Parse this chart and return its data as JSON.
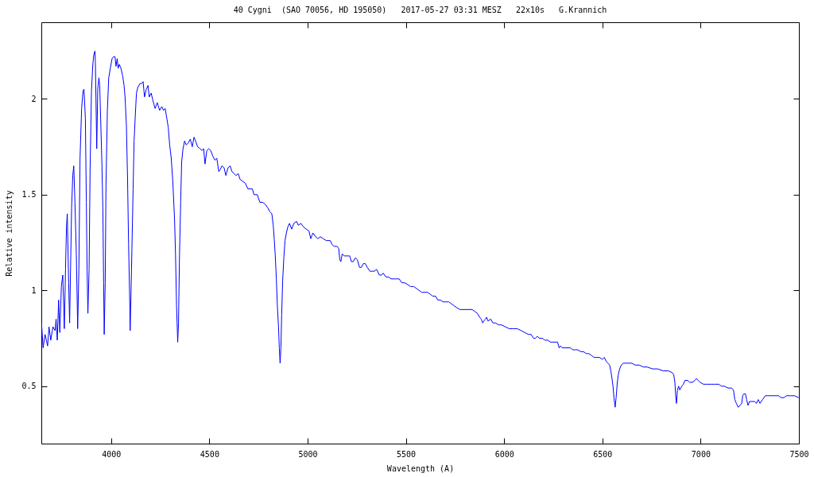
{
  "chart_data": {
    "type": "line",
    "title": "40 Cygni  (SAO 70056, HD 195050)   2017-05-27 03:31 MESZ   22x10s   G.Krannich",
    "xlabel": "Wavelength (A)",
    "ylabel": "Relative intensity",
    "color": "#0000ff",
    "xlim": [
      3645,
      7500
    ],
    "ylim": [
      0.2,
      2.4
    ],
    "xticks": [
      4000,
      4500,
      5000,
      5500,
      6000,
      6500,
      7000,
      7500
    ],
    "yticks": [
      0.5,
      1,
      1.5,
      2
    ],
    "x": [
      3646,
      3654,
      3664,
      3677,
      3684,
      3693,
      3704,
      3715,
      3720,
      3726,
      3733,
      3739,
      3747,
      3754,
      3762,
      3768,
      3773,
      3777,
      3784,
      3789,
      3799,
      3805,
      3810,
      3816,
      3823,
      3830,
      3836,
      3842,
      3850,
      3857,
      3862,
      3869,
      3874,
      3878,
      3882,
      3888,
      3893,
      3900,
      3907,
      3912,
      3918,
      3920,
      3923,
      3927,
      3932,
      3938,
      3942,
      3947,
      3953,
      3958,
      3962,
      3965,
      3970,
      3974,
      3981,
      3988,
      3996,
      4005,
      4012,
      4020,
      4025,
      4031,
      4036,
      4042,
      4050,
      4059,
      4066,
      4071,
      4078,
      4084,
      4089,
      4094,
      4097,
      4101,
      4106,
      4112,
      4117,
      4123,
      4129,
      4136,
      4147,
      4156,
      4163,
      4170,
      4179,
      4188,
      4194,
      4204,
      4213,
      4224,
      4235,
      4247,
      4258,
      4267,
      4275,
      4285,
      4291,
      4298,
      4306,
      4314,
      4323,
      4328,
      4333,
      4339,
      4343,
      4348,
      4354,
      4359,
      4366,
      4374,
      4382,
      4393,
      4403,
      4413,
      4422,
      4430,
      4440,
      4453,
      4463,
      4471,
      4478,
      4487,
      4497,
      4507,
      4518,
      4528,
      4538,
      4548,
      4555,
      4564,
      4575,
      4584,
      4595,
      4606,
      4615,
      4626,
      4636,
      4647,
      4656,
      4669,
      4683,
      4696,
      4710,
      4719,
      4727,
      4744,
      4757,
      4771,
      4784,
      4798,
      4808,
      4818,
      4825,
      4830,
      4835,
      4841,
      4846,
      4852,
      4856,
      4860,
      4864,
      4868,
      4873,
      4879,
      4885,
      4892,
      4899,
      4908,
      4919,
      4930,
      4944,
      4953,
      4966,
      4980,
      4993,
      5007,
      5016,
      5027,
      5041,
      5052,
      5065,
      5079,
      5095,
      5115,
      5124,
      5135,
      5149,
      5158,
      5164,
      5169,
      5176,
      5187,
      5200,
      5214,
      5223,
      5232,
      5243,
      5253,
      5264,
      5273,
      5284,
      5293,
      5304,
      5317,
      5331,
      5340,
      5351,
      5365,
      5376,
      5385,
      5398,
      5412,
      5425,
      5439,
      5452,
      5466,
      5479,
      5493,
      5510,
      5524,
      5540,
      5554,
      5567,
      5581,
      5594,
      5610,
      5624,
      5637,
      5651,
      5662,
      5675,
      5689,
      5702,
      5718,
      5732,
      5745,
      5759,
      5776,
      5797,
      5817,
      5837,
      5851,
      5864,
      5875,
      5884,
      5891,
      5897,
      5905,
      5911,
      5918,
      5932,
      5943,
      5956,
      5972,
      5986,
      6006,
      6026,
      6046,
      6067,
      6087,
      6105,
      6123,
      6137,
      6150,
      6159,
      6168,
      6181,
      6195,
      6208,
      6222,
      6236,
      6249,
      6262,
      6272,
      6280,
      6287,
      6296,
      6310,
      6323,
      6337,
      6350,
      6361,
      6374,
      6391,
      6404,
      6418,
      6431,
      6445,
      6458,
      6472,
      6485,
      6499,
      6510,
      6519,
      6528,
      6537,
      6543,
      6549,
      6554,
      6559,
      6565,
      6570,
      6576,
      6581,
      6588,
      6596,
      6607,
      6620,
      6634,
      6650,
      6667,
      6688,
      6708,
      6728,
      6755,
      6782,
      6809,
      6836,
      6856,
      6863,
      6869,
      6873,
      6877,
      6882,
      6888,
      6894,
      6904,
      6912,
      6920,
      6934,
      6944,
      6958,
      6971,
      6979,
      6987,
      6998,
      7014,
      7032,
      7052,
      7073,
      7093,
      7106,
      7120,
      7140,
      7158,
      7167,
      7174,
      7182,
      7191,
      7201,
      7209,
      7214,
      7220,
      7228,
      7234,
      7241,
      7249,
      7261,
      7275,
      7284,
      7293,
      7302,
      7315,
      7329,
      7342,
      7363,
      7383,
      7396,
      7410,
      7424,
      7437,
      7457,
      7477,
      7499
    ],
    "values": [
      0.83,
      0.7,
      0.77,
      0.71,
      0.81,
      0.74,
      0.81,
      0.79,
      0.85,
      0.74,
      0.95,
      0.78,
      1.02,
      1.08,
      0.8,
      1.11,
      1.33,
      1.4,
      1.04,
      0.83,
      1.43,
      1.6,
      1.65,
      1.46,
      1.19,
      0.8,
      1.11,
      1.69,
      1.95,
      2.04,
      2.05,
      1.9,
      1.46,
      1.1,
      0.88,
      1.11,
      1.62,
      2.04,
      2.18,
      2.23,
      2.25,
      2.19,
      2.0,
      1.74,
      2.05,
      2.11,
      2.07,
      1.89,
      1.67,
      1.43,
      1.04,
      0.77,
      1.04,
      1.55,
      1.94,
      2.11,
      2.16,
      2.21,
      2.22,
      2.22,
      2.17,
      2.21,
      2.16,
      2.18,
      2.16,
      2.12,
      2.07,
      2.01,
      1.86,
      1.57,
      1.24,
      0.99,
      0.79,
      0.97,
      1.22,
      1.53,
      1.78,
      1.91,
      2.03,
      2.06,
      2.08,
      2.08,
      2.09,
      2.01,
      2.05,
      2.07,
      2.01,
      2.03,
      1.99,
      1.95,
      1.98,
      1.94,
      1.96,
      1.94,
      1.95,
      1.89,
      1.85,
      1.76,
      1.69,
      1.57,
      1.37,
      1.18,
      0.92,
      0.73,
      0.83,
      1.18,
      1.46,
      1.67,
      1.74,
      1.78,
      1.76,
      1.77,
      1.79,
      1.75,
      1.8,
      1.78,
      1.75,
      1.74,
      1.73,
      1.74,
      1.66,
      1.73,
      1.74,
      1.73,
      1.7,
      1.68,
      1.69,
      1.62,
      1.63,
      1.65,
      1.64,
      1.6,
      1.64,
      1.65,
      1.62,
      1.61,
      1.6,
      1.61,
      1.58,
      1.57,
      1.56,
      1.53,
      1.53,
      1.53,
      1.5,
      1.5,
      1.46,
      1.46,
      1.45,
      1.43,
      1.41,
      1.4,
      1.34,
      1.27,
      1.19,
      1.06,
      0.92,
      0.81,
      0.7,
      0.62,
      0.7,
      0.87,
      1.05,
      1.17,
      1.26,
      1.3,
      1.33,
      1.35,
      1.32,
      1.35,
      1.36,
      1.34,
      1.35,
      1.33,
      1.32,
      1.31,
      1.27,
      1.3,
      1.28,
      1.27,
      1.28,
      1.27,
      1.26,
      1.26,
      1.24,
      1.23,
      1.23,
      1.22,
      1.16,
      1.15,
      1.19,
      1.18,
      1.18,
      1.18,
      1.15,
      1.15,
      1.17,
      1.16,
      1.12,
      1.12,
      1.14,
      1.14,
      1.12,
      1.1,
      1.1,
      1.1,
      1.11,
      1.08,
      1.08,
      1.09,
      1.07,
      1.07,
      1.06,
      1.06,
      1.06,
      1.06,
      1.04,
      1.04,
      1.03,
      1.02,
      1.02,
      1.01,
      1.0,
      0.99,
      0.99,
      0.99,
      0.98,
      0.97,
      0.97,
      0.95,
      0.95,
      0.94,
      0.94,
      0.94,
      0.93,
      0.92,
      0.91,
      0.9,
      0.9,
      0.9,
      0.9,
      0.89,
      0.88,
      0.86,
      0.85,
      0.83,
      0.84,
      0.85,
      0.86,
      0.84,
      0.85,
      0.83,
      0.83,
      0.82,
      0.82,
      0.81,
      0.8,
      0.8,
      0.8,
      0.79,
      0.78,
      0.77,
      0.77,
      0.75,
      0.75,
      0.76,
      0.75,
      0.75,
      0.74,
      0.74,
      0.73,
      0.73,
      0.73,
      0.73,
      0.7,
      0.71,
      0.7,
      0.7,
      0.7,
      0.7,
      0.69,
      0.69,
      0.69,
      0.68,
      0.68,
      0.67,
      0.67,
      0.66,
      0.65,
      0.65,
      0.65,
      0.64,
      0.65,
      0.63,
      0.62,
      0.61,
      0.58,
      0.54,
      0.5,
      0.44,
      0.39,
      0.44,
      0.52,
      0.56,
      0.59,
      0.61,
      0.62,
      0.62,
      0.62,
      0.62,
      0.61,
      0.61,
      0.6,
      0.6,
      0.59,
      0.59,
      0.58,
      0.58,
      0.57,
      0.56,
      0.52,
      0.45,
      0.41,
      0.48,
      0.5,
      0.48,
      0.5,
      0.51,
      0.53,
      0.53,
      0.52,
      0.52,
      0.53,
      0.54,
      0.53,
      0.52,
      0.51,
      0.51,
      0.51,
      0.51,
      0.51,
      0.5,
      0.5,
      0.49,
      0.49,
      0.48,
      0.43,
      0.41,
      0.39,
      0.4,
      0.41,
      0.45,
      0.46,
      0.46,
      0.43,
      0.4,
      0.42,
      0.42,
      0.42,
      0.41,
      0.43,
      0.41,
      0.43,
      0.45,
      0.45,
      0.45,
      0.45,
      0.45,
      0.44,
      0.44,
      0.45,
      0.45,
      0.45,
      0.44
    ]
  }
}
